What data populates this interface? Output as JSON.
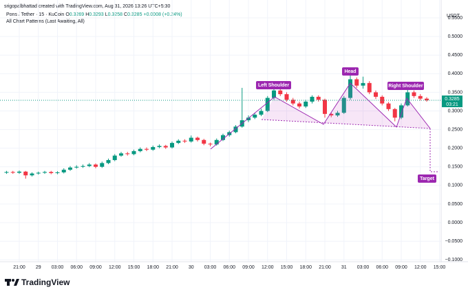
{
  "header": {
    "credit": "srigopalbhattad created with TradingView.com, Aug 31, 2026 13:26 UTC+5:30",
    "symbol": "Pons / Tether · 15 · KuCoin",
    "ohlc": [
      {
        "label": "O",
        "value": "0.3269"
      },
      {
        "label": "H",
        "value": "0.3293"
      },
      {
        "label": "L",
        "value": "0.3258"
      },
      {
        "label": "C",
        "value": "0.3285"
      }
    ],
    "change": "+0.0008 (+0.24%)",
    "indicator": "All Chart Patterns (Last Awaiting, All)"
  },
  "chart_data": {
    "type": "candlestick",
    "currency": "USDT",
    "up_color": "#089981",
    "down_color": "#f23645",
    "grid": true,
    "categories": [
      null,
      null,
      "21:00",
      null,
      null,
      "29",
      null,
      null,
      "03:00",
      null,
      null,
      "06:00",
      null,
      null,
      "09:00",
      null,
      null,
      "12:00",
      null,
      null,
      "15:00",
      null,
      null,
      "18:00",
      null,
      null,
      "21:00",
      null,
      null,
      "30",
      null,
      null,
      "03:00",
      null,
      null,
      "06:00",
      null,
      null,
      "09:00",
      null,
      null,
      "12:00",
      null,
      null,
      "15:00",
      null,
      null,
      "18:00",
      null,
      null,
      "21:00",
      null,
      null,
      "31",
      null,
      null,
      "03:00",
      null,
      null,
      "06:00",
      null,
      null,
      "09:00",
      null,
      null,
      "12:00",
      null,
      null,
      "15:00"
    ],
    "open": [
      0.134,
      0.136,
      0.134,
      0.137,
      0.127,
      0.132,
      0.134,
      0.136,
      0.133,
      0.135,
      0.142,
      0.148,
      0.15,
      0.152,
      0.156,
      0.15,
      0.16,
      0.168,
      0.18,
      0.186,
      0.184,
      0.192,
      0.198,
      0.196,
      0.203,
      0.206,
      0.202,
      0.214,
      0.22,
      0.218,
      0.228,
      0.222,
      0.212,
      0.21,
      0.222,
      0.235,
      0.243,
      0.258,
      0.275,
      0.282,
      0.29,
      0.3,
      0.335,
      0.355,
      0.345,
      0.33,
      0.32,
      0.312,
      0.325,
      0.338,
      0.33,
      0.292,
      0.288,
      0.295,
      0.335,
      0.385,
      0.368,
      0.375,
      0.35,
      0.338,
      0.32,
      0.305,
      0.282,
      0.315,
      0.35,
      0.34,
      0.333,
      null,
      null
    ],
    "high": [
      0.139,
      0.139,
      0.14,
      0.139,
      0.135,
      0.137,
      0.139,
      0.139,
      0.138,
      0.146,
      0.152,
      0.154,
      0.156,
      0.16,
      0.159,
      0.164,
      0.172,
      0.184,
      0.19,
      0.19,
      0.196,
      0.202,
      0.202,
      0.207,
      0.21,
      0.209,
      0.218,
      0.224,
      0.224,
      0.234,
      0.231,
      0.225,
      0.215,
      0.226,
      0.239,
      0.247,
      0.262,
      0.362,
      0.288,
      0.295,
      0.306,
      0.34,
      0.365,
      0.36,
      0.35,
      0.335,
      0.325,
      0.33,
      0.342,
      0.342,
      0.333,
      0.296,
      0.3,
      0.34,
      0.402,
      0.39,
      0.392,
      0.38,
      0.355,
      0.342,
      0.324,
      0.308,
      0.32,
      0.362,
      0.355,
      0.345,
      0.337,
      null,
      null
    ],
    "low": [
      0.131,
      0.131,
      0.131,
      0.118,
      0.124,
      0.129,
      0.131,
      0.13,
      0.13,
      0.132,
      0.139,
      0.145,
      0.147,
      0.149,
      0.146,
      0.147,
      0.157,
      0.165,
      0.177,
      0.18,
      0.181,
      0.189,
      0.192,
      0.193,
      0.2,
      0.198,
      0.199,
      0.211,
      0.214,
      0.215,
      0.218,
      0.208,
      0.205,
      0.207,
      0.219,
      0.231,
      0.24,
      0.255,
      0.27,
      0.278,
      0.286,
      0.297,
      0.33,
      0.34,
      0.325,
      0.315,
      0.307,
      0.308,
      0.32,
      0.325,
      0.282,
      0.283,
      0.284,
      0.292,
      0.33,
      0.362,
      0.36,
      0.345,
      0.332,
      0.315,
      0.3,
      0.272,
      0.278,
      0.312,
      0.335,
      0.328,
      0.325,
      null,
      null
    ],
    "close": [
      0.136,
      0.134,
      0.137,
      0.127,
      0.132,
      0.134,
      0.136,
      0.133,
      0.135,
      0.142,
      0.148,
      0.15,
      0.152,
      0.156,
      0.15,
      0.16,
      0.168,
      0.18,
      0.186,
      0.184,
      0.192,
      0.198,
      0.196,
      0.203,
      0.206,
      0.202,
      0.214,
      0.22,
      0.218,
      0.228,
      0.222,
      0.212,
      0.21,
      0.222,
      0.235,
      0.243,
      0.258,
      0.275,
      0.282,
      0.29,
      0.3,
      0.335,
      0.355,
      0.345,
      0.33,
      0.32,
      0.312,
      0.325,
      0.338,
      0.33,
      0.292,
      0.288,
      0.295,
      0.335,
      0.385,
      0.368,
      0.375,
      0.35,
      0.338,
      0.32,
      0.305,
      0.282,
      0.315,
      0.35,
      0.34,
      0.333,
      0.3285,
      null,
      null
    ],
    "last_price": {
      "value": 0.3285,
      "label": "0.3285"
    },
    "countdown": "03:21",
    "ylim": [
      -0.105,
      0.598
    ],
    "yticks": [
      {
        "value": -0.1,
        "label": "−0.1000"
      },
      {
        "value": -0.05,
        "label": "−0.0500"
      },
      {
        "value": 0,
        "label": "0.0000"
      },
      {
        "value": 0.05,
        "label": "0.0500"
      },
      {
        "value": 0.1,
        "label": "0.1000"
      },
      {
        "value": 0.15,
        "label": "0.1500"
      },
      {
        "value": 0.2,
        "label": "0.2000"
      },
      {
        "value": 0.25,
        "label": "0.2500"
      },
      {
        "value": 0.3,
        "label": "0.3000"
      },
      {
        "value": 0.35,
        "label": "0.3500"
      },
      {
        "value": 0.4,
        "label": "0.4000"
      },
      {
        "value": 0.45,
        "label": "0.4500"
      },
      {
        "value": 0.5,
        "label": "0.5000"
      },
      {
        "value": 0.55,
        "label": "0.5500"
      }
    ],
    "annotations": {
      "left_shoulder": "Left Shoulder",
      "head": "Head",
      "right_shoulder": "Right Shoulder",
      "target": "Target"
    }
  },
  "footer": {
    "brand": "TradingView"
  }
}
